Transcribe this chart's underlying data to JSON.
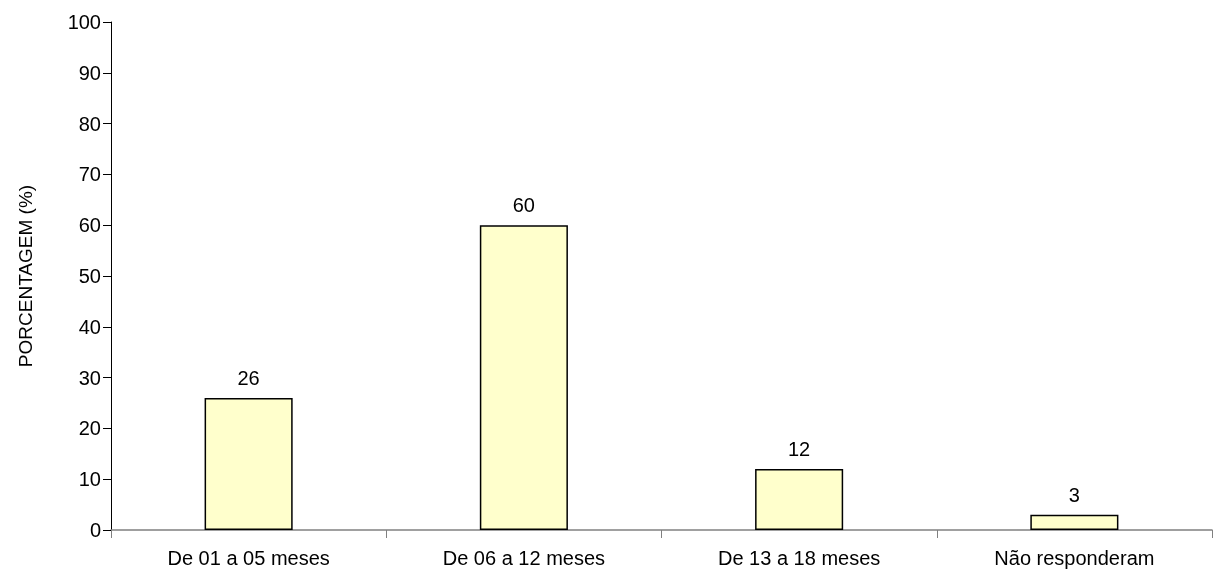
{
  "chart_data": {
    "type": "bar",
    "ylabel": "PORCENTAGEM (%)",
    "categories": [
      "De 01 a 05 meses",
      "De 06 a 12 meses",
      "De 13 a 18 meses",
      "Não responderam"
    ],
    "values": [
      26,
      60,
      12,
      3
    ],
    "color": "#ffffcc",
    "ylim": [
      0,
      100
    ],
    "yticks": [
      0,
      10,
      20,
      30,
      40,
      50,
      60,
      70,
      80,
      90,
      100
    ],
    "data_labels": true
  }
}
